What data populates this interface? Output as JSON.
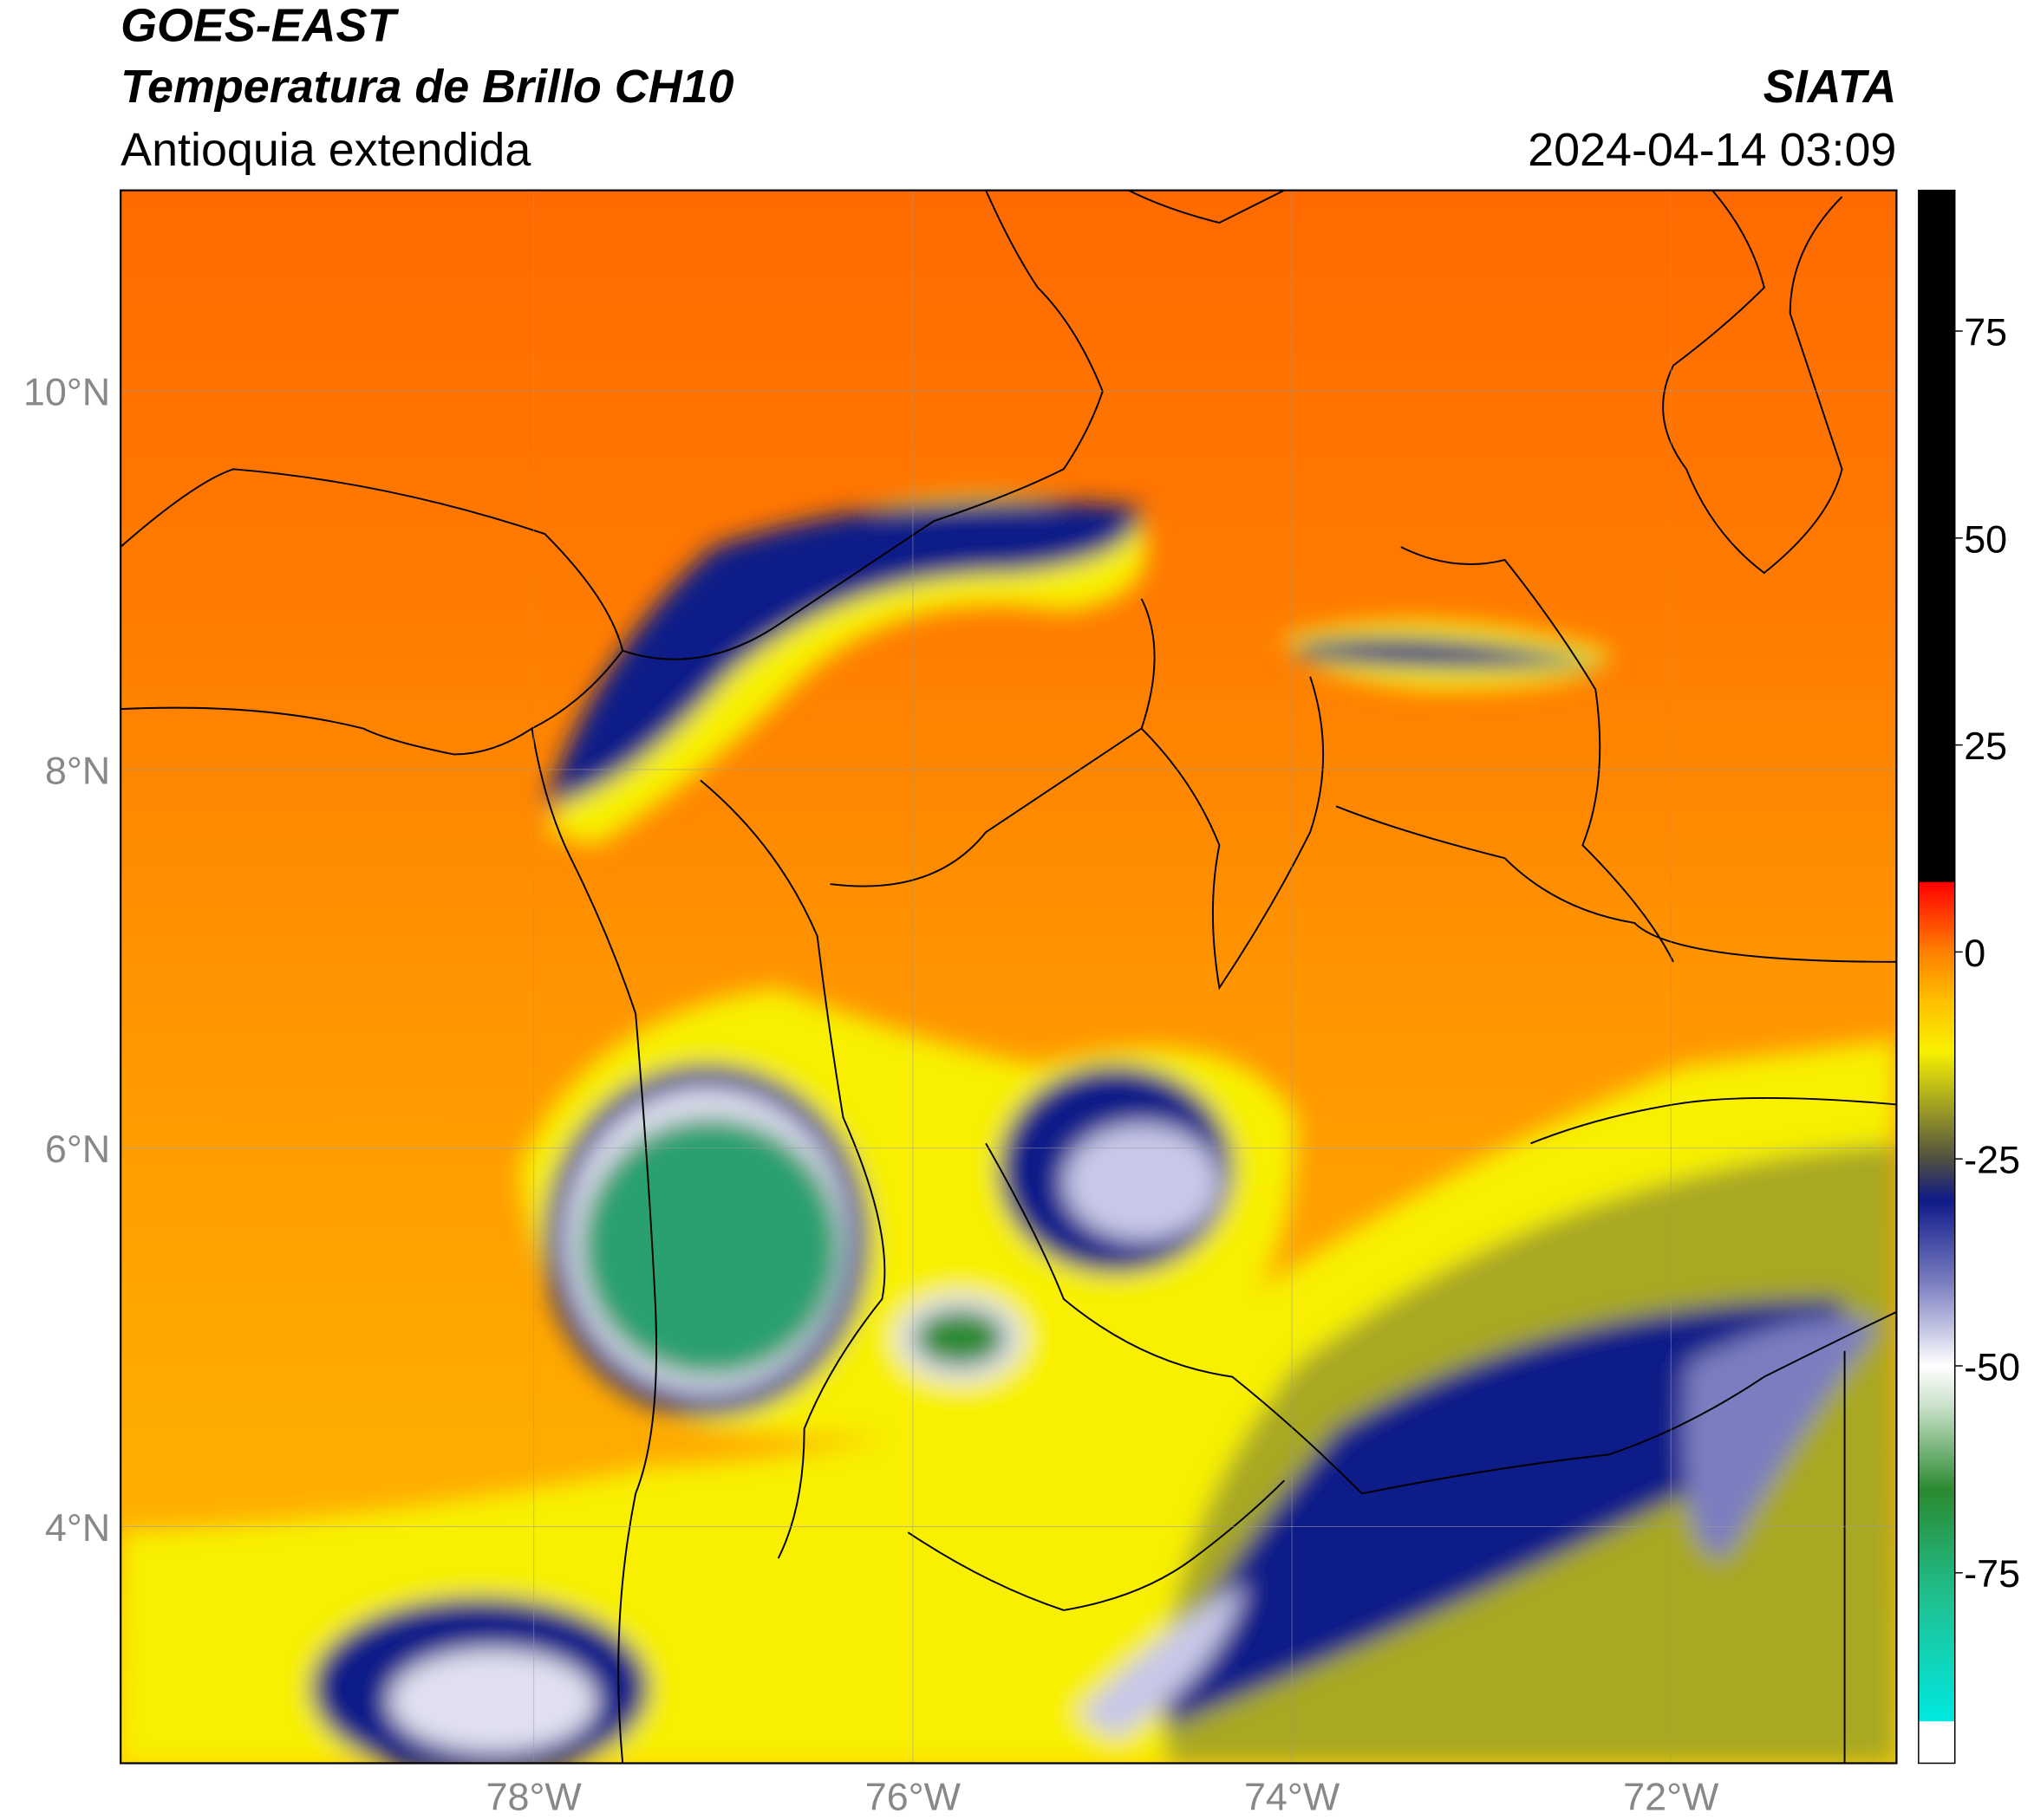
{
  "header": {
    "title": "GOES-EAST",
    "subtitle": "Temperatura de Brillo CH10",
    "region": "Antioquia extendida",
    "source": "SIATA",
    "datetime": "2024-04-14 03:09"
  },
  "map": {
    "xlim": [
      -80.18,
      -70.81
    ],
    "ylim": [
      2.75,
      11.06
    ],
    "xticks": [
      {
        "value": -78,
        "label": "78°W"
      },
      {
        "value": -76,
        "label": "76°W"
      },
      {
        "value": -74,
        "label": "74°W"
      },
      {
        "value": -72,
        "label": "72°W"
      }
    ],
    "yticks": [
      {
        "value": 4,
        "label": "4°N"
      },
      {
        "value": 6,
        "label": "6°N"
      },
      {
        "value": 8,
        "label": "8°N"
      },
      {
        "value": 10,
        "label": "10°N"
      }
    ],
    "grid": true
  },
  "colorbar": {
    "clim": [
      -98,
      92
    ],
    "ticks": [
      -75,
      -50,
      -25,
      0,
      25,
      50,
      75
    ],
    "stops": [
      {
        "value": -98,
        "color": "#ffffff"
      },
      {
        "value": -93,
        "color": "#ffffff"
      },
      {
        "value": -92.9,
        "color": "#00e8e0"
      },
      {
        "value": -78,
        "color": "#20c090"
      },
      {
        "value": -65,
        "color": "#2a8a30"
      },
      {
        "value": -55,
        "color": "#c8e0c8"
      },
      {
        "value": -50,
        "color": "#ffffff"
      },
      {
        "value": -40,
        "color": "#7a7ec0"
      },
      {
        "value": -30,
        "color": "#101a88"
      },
      {
        "value": -25,
        "color": "#505040"
      },
      {
        "value": -18,
        "color": "#a8a820"
      },
      {
        "value": -12,
        "color": "#f8f000"
      },
      {
        "value": -6,
        "color": "#ffc000"
      },
      {
        "value": 0,
        "color": "#ff8000"
      },
      {
        "value": 8.4,
        "color": "#ff0000"
      },
      {
        "value": 8.5,
        "color": "#000000"
      },
      {
        "value": 92,
        "color": "#000000"
      }
    ]
  }
}
